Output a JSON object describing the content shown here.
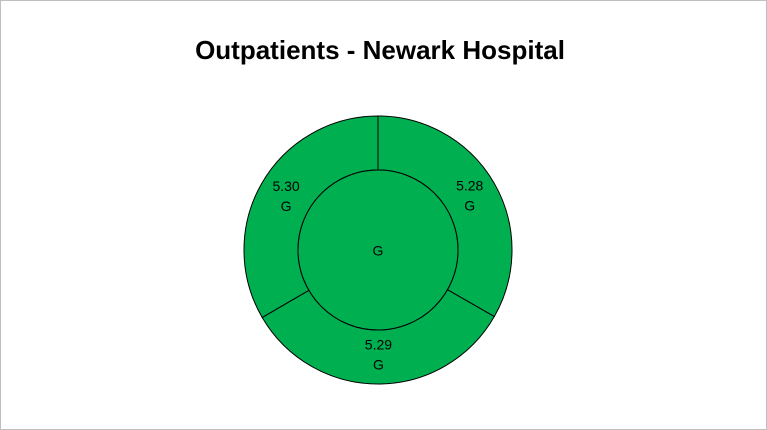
{
  "chart_data": {
    "type": "sunburst",
    "title": "Outpatients - Newark Hospital",
    "center_label": "G",
    "categories": [
      "G",
      "G",
      "G"
    ],
    "values": [
      5.28,
      5.29,
      5.3
    ],
    "value_labels": [
      "5.28",
      "5.29",
      "5.30"
    ],
    "color": "#00b050"
  }
}
